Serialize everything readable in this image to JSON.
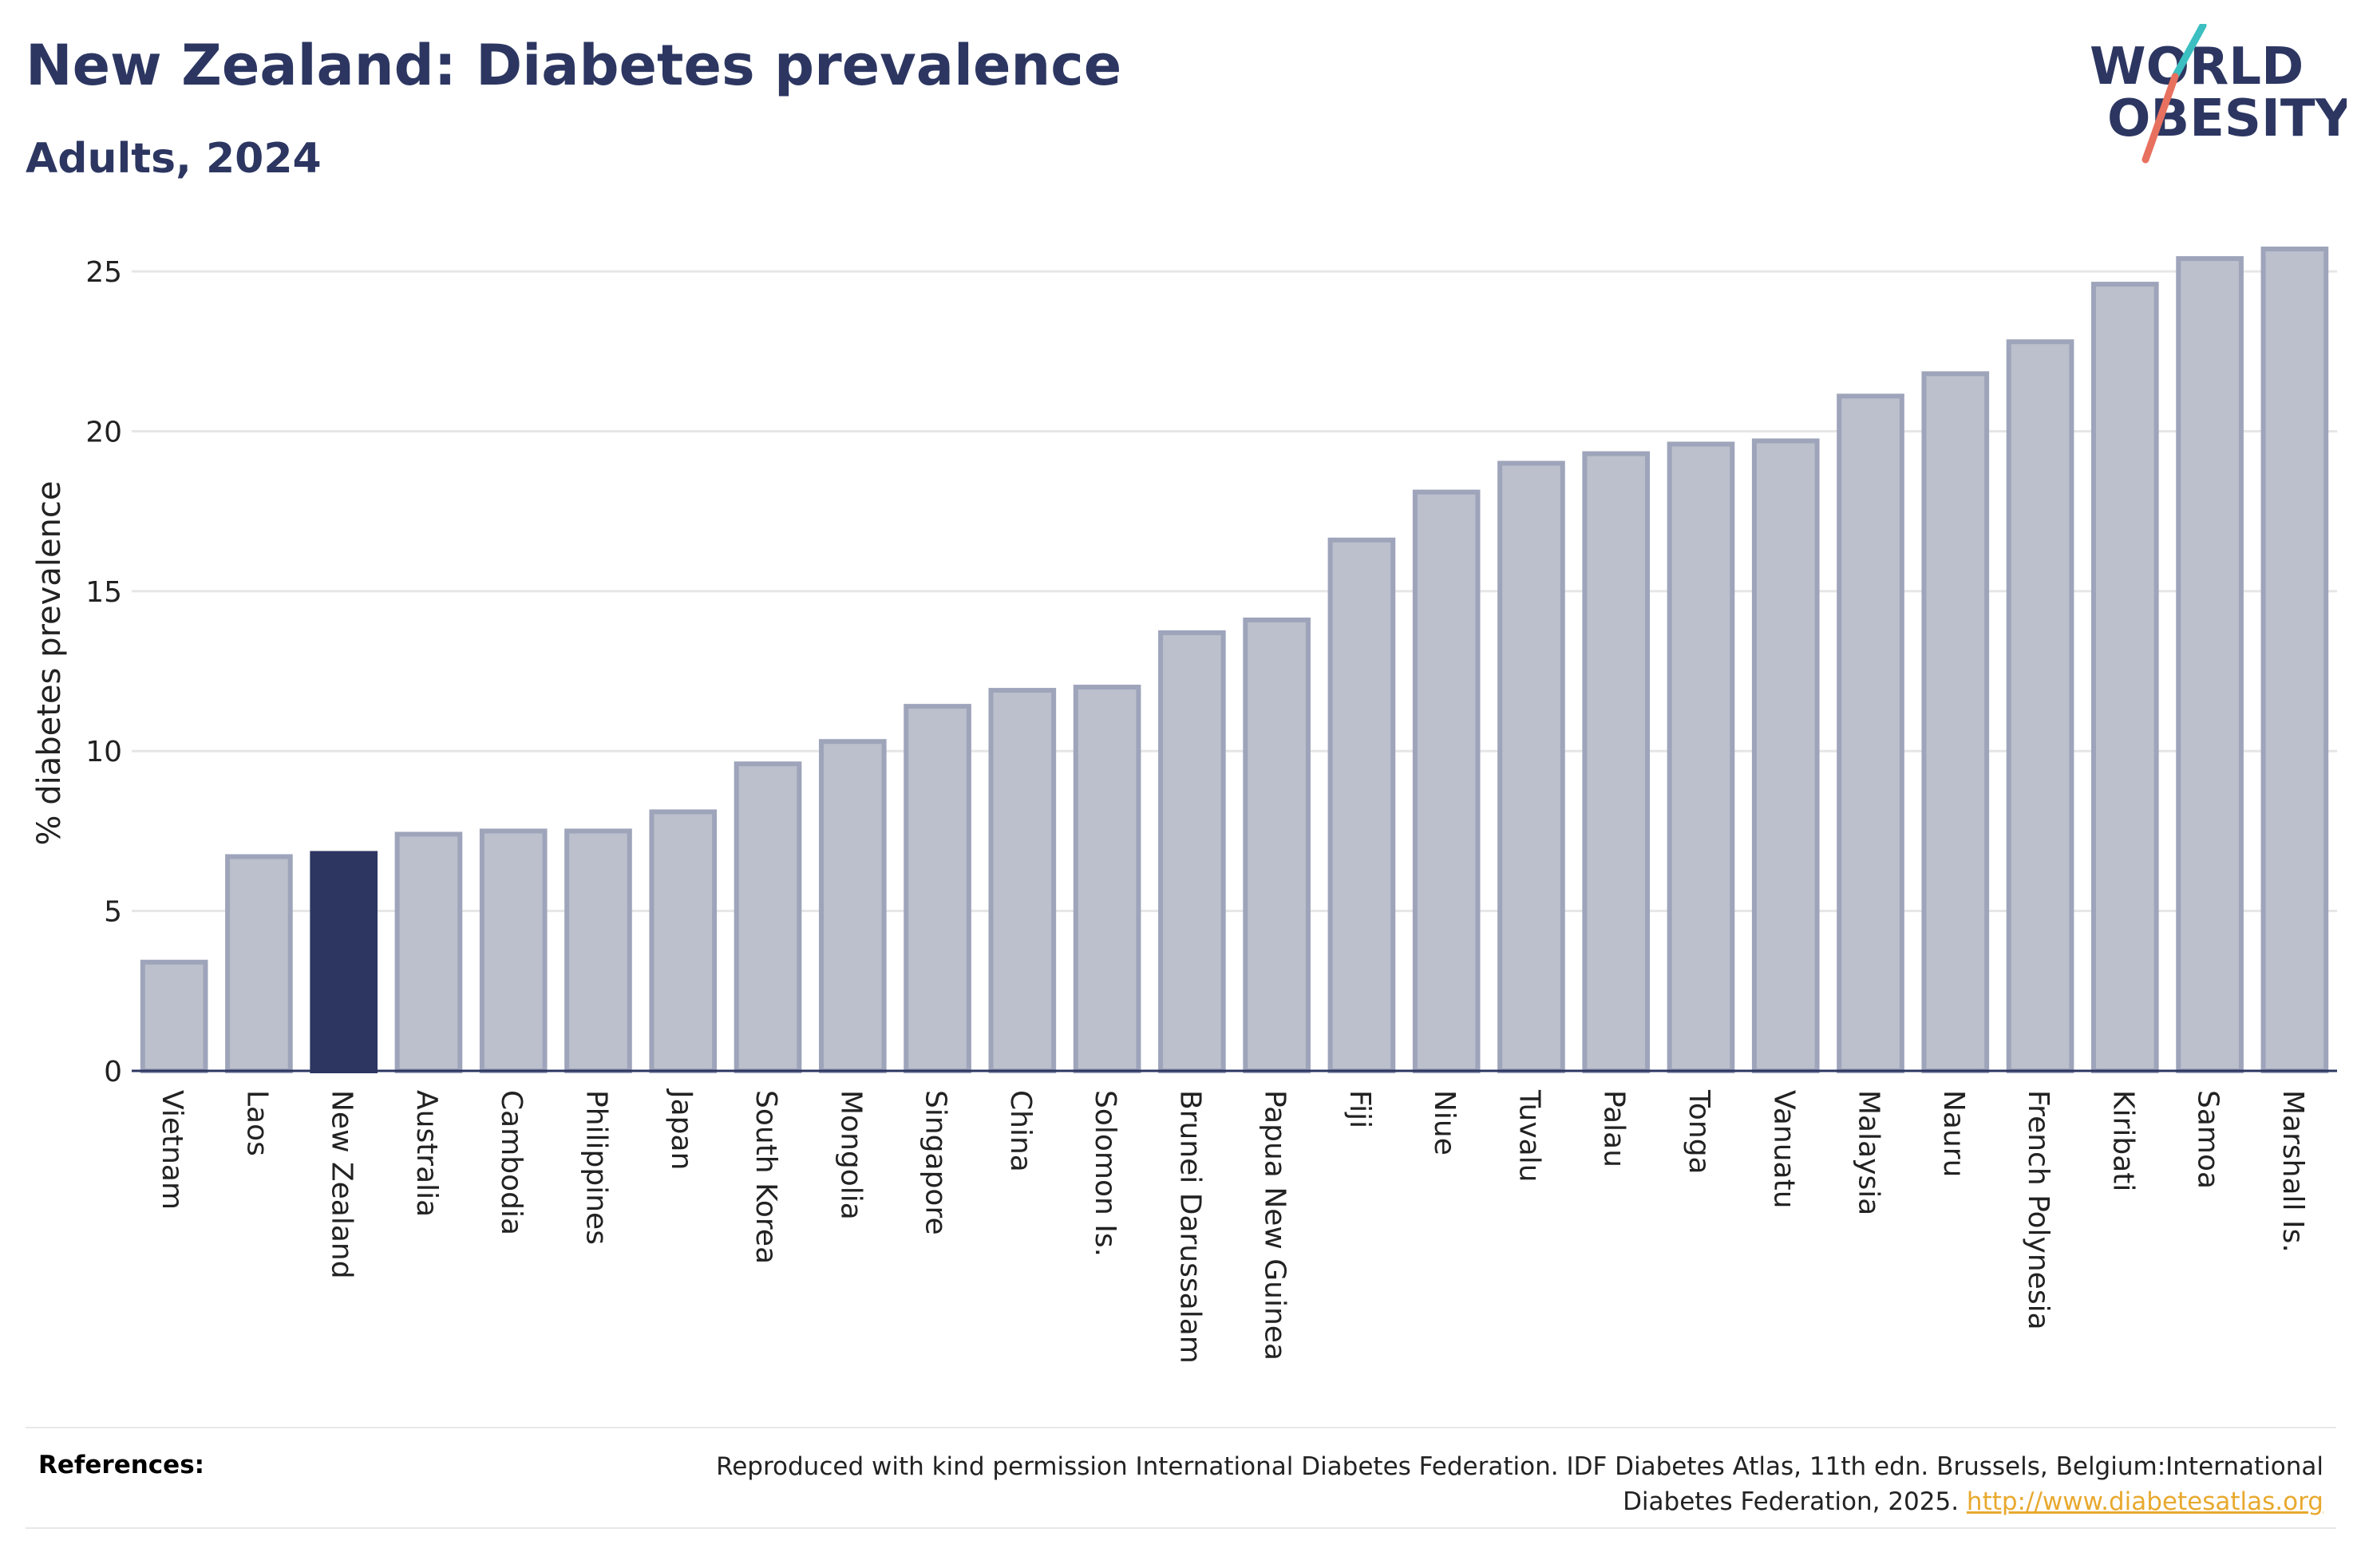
{
  "header": {
    "title": "New Zealand: Diabetes prevalence",
    "subtitle": "Adults, 2024"
  },
  "logo": {
    "line1": "WORLD",
    "line2": "OBESITY",
    "colors": {
      "text": "#2c3661",
      "slash_teal": "#3bbfc1",
      "slash_coral": "#e8705f"
    }
  },
  "chart_data": {
    "type": "bar",
    "title": "New Zealand: Diabetes prevalence",
    "subtitle": "Adults, 2024",
    "ylabel": "% diabetes prevalence",
    "xlabel": "",
    "ylim": [
      0,
      26
    ],
    "yticks": [
      0,
      5,
      10,
      15,
      20,
      25
    ],
    "grid": true,
    "legend": "none",
    "categories": [
      "Vietnam",
      "Laos",
      "New Zealand",
      "Australia",
      "Cambodia",
      "Philippines",
      "Japan",
      "South Korea",
      "Mongolia",
      "Singapore",
      "China",
      "Solomon Is.",
      "Brunei Darussalam",
      "Papua New Guinea",
      "Fiji",
      "Niue",
      "Tuvalu",
      "Palau",
      "Tonga",
      "Vanuatu",
      "Malaysia",
      "Nauru",
      "French Polynesia",
      "Kiribati",
      "Samoa",
      "Marshall Is."
    ],
    "values": [
      3.4,
      6.7,
      6.8,
      7.4,
      7.5,
      7.5,
      8.1,
      9.6,
      10.3,
      11.4,
      11.9,
      12.0,
      13.7,
      14.1,
      16.6,
      18.1,
      19.0,
      19.3,
      19.6,
      19.7,
      21.1,
      21.8,
      22.8,
      24.6,
      25.4,
      25.7
    ],
    "highlight": "New Zealand",
    "colors": {
      "bar_fill": "#bcc0cc",
      "bar_stroke": "#9ea4ba",
      "highlight": "#2c3661",
      "grid": "#e6e6e6",
      "axis": "#2c3661"
    }
  },
  "references": {
    "label": "References:",
    "text": "Reproduced with kind permission International Diabetes Federation. IDF Diabetes Atlas, 11th edn. Brussels, Belgium:International Diabetes Federation, 2025.",
    "link": "http://www.diabetesatlas.org"
  }
}
